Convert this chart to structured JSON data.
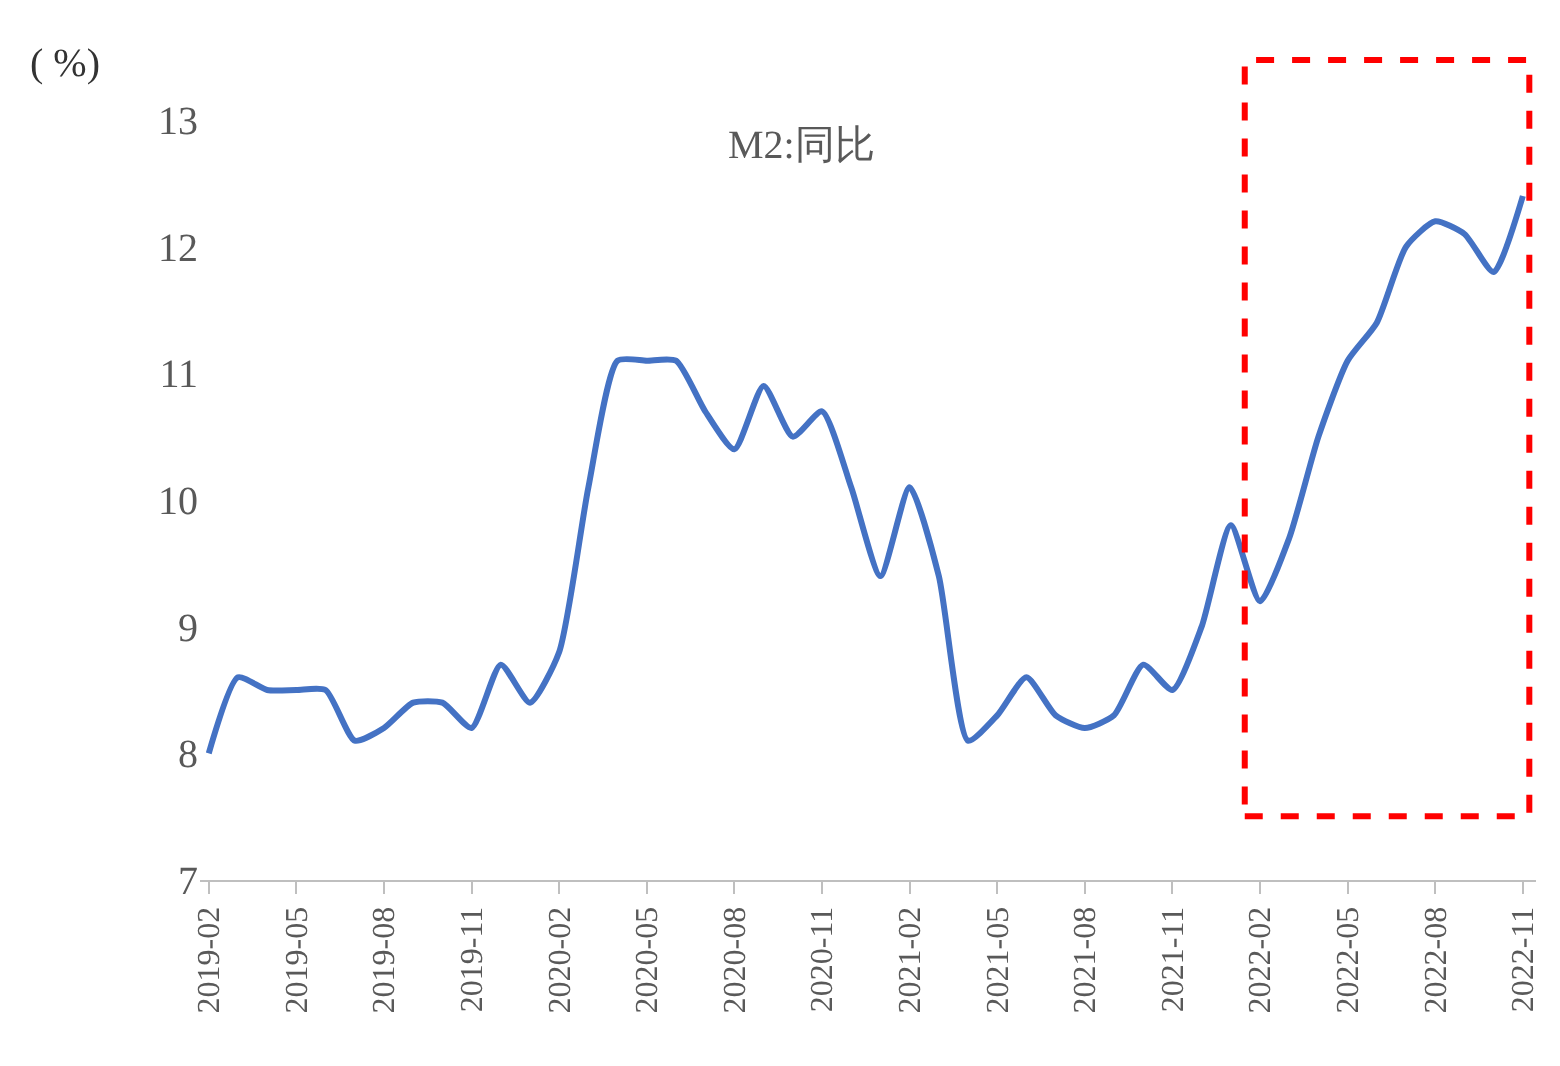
{
  "chart_data": {
    "type": "line",
    "title": "M2:同比",
    "ylabel": "( %)",
    "categories": [
      "2019-02",
      null,
      null,
      "2019-05",
      null,
      null,
      "2019-08",
      null,
      null,
      "2019-11",
      null,
      null,
      "2020-02",
      null,
      null,
      "2020-05",
      null,
      null,
      "2020-08",
      null,
      null,
      "2020-11",
      null,
      null,
      "2021-02",
      null,
      null,
      "2021-05",
      null,
      null,
      "2021-08",
      null,
      null,
      "2021-11",
      null,
      null,
      "2022-02",
      null,
      null,
      "2022-05",
      null,
      null,
      "2022-08",
      null,
      null,
      "2022-11"
    ],
    "series": [
      {
        "color": "#4472c4",
        "values": [
          8.0,
          8.6,
          8.5,
          8.5,
          8.5,
          8.1,
          8.2,
          8.4,
          8.4,
          8.2,
          8.7,
          8.4,
          8.8,
          10.1,
          11.1,
          11.1,
          11.1,
          10.7,
          10.4,
          10.9,
          10.5,
          10.7,
          10.1,
          9.4,
          10.1,
          9.4,
          8.1,
          8.3,
          8.6,
          8.3,
          8.2,
          8.3,
          8.7,
          8.5,
          9.0,
          9.8,
          9.2,
          9.7,
          10.5,
          11.1,
          11.4,
          12.0,
          12.2,
          12.1,
          11.8,
          12.4
        ]
      }
    ],
    "ylim": [
      7,
      13
    ],
    "yticks": [
      7,
      8,
      9,
      10,
      11,
      12,
      13
    ],
    "grid": false,
    "marker": "none",
    "line_style": "solid"
  }
}
